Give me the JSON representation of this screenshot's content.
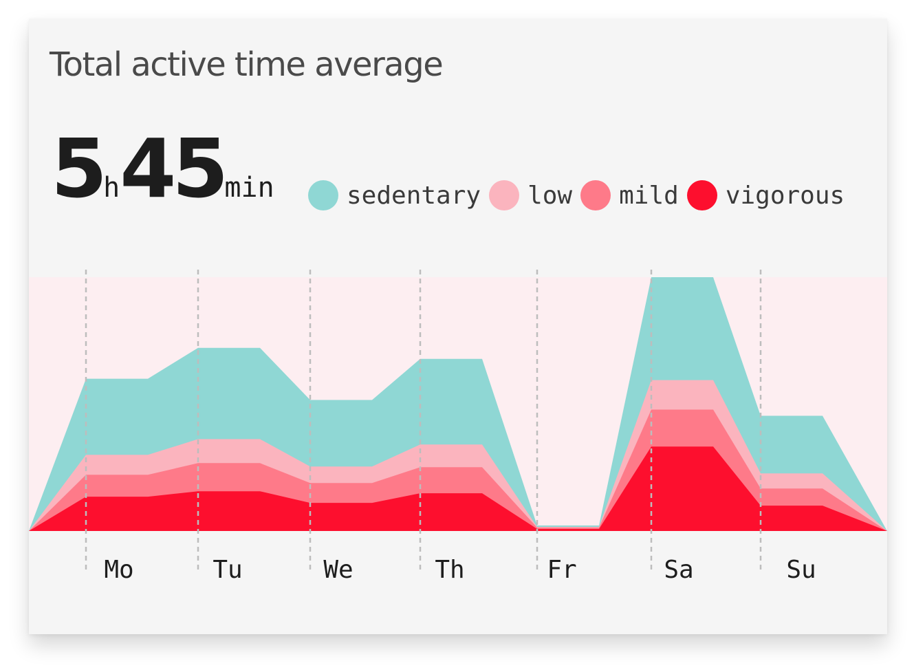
{
  "card": {
    "title": "Total active time average",
    "total_hours": "5",
    "hours_unit": "h",
    "total_minutes": "45",
    "minutes_unit": "min"
  },
  "legend": [
    {
      "label": "sedentary",
      "color": "#8fd7d4"
    },
    {
      "label": "low",
      "color": "#fbb4be"
    },
    {
      "label": "mild",
      "color": "#fe7a89"
    },
    {
      "label": "vigorous",
      "color": "#fd0f2e"
    }
  ],
  "chart_data": {
    "type": "area",
    "stacked": true,
    "categories": [
      "Mo",
      "Tu",
      "We",
      "Th",
      "Fr",
      "Sa",
      "Su"
    ],
    "series": [
      {
        "name": "vigorous",
        "color": "#fd0f2e",
        "values": [
          50,
          58,
          41,
          55,
          3,
          123,
          37
        ]
      },
      {
        "name": "mild",
        "color": "#fe7a89",
        "values": [
          32,
          41,
          29,
          38,
          2,
          54,
          25
        ]
      },
      {
        "name": "low",
        "color": "#fbb4be",
        "values": [
          29,
          35,
          24,
          33,
          1,
          43,
          22
        ]
      },
      {
        "name": "sedentary",
        "color": "#8fd7d4",
        "values": [
          111,
          133,
          97,
          125,
          2,
          150,
          84
        ]
      }
    ],
    "ylim": [
      0,
      370
    ],
    "grid": false,
    "plot_background": "#fdeef1"
  }
}
